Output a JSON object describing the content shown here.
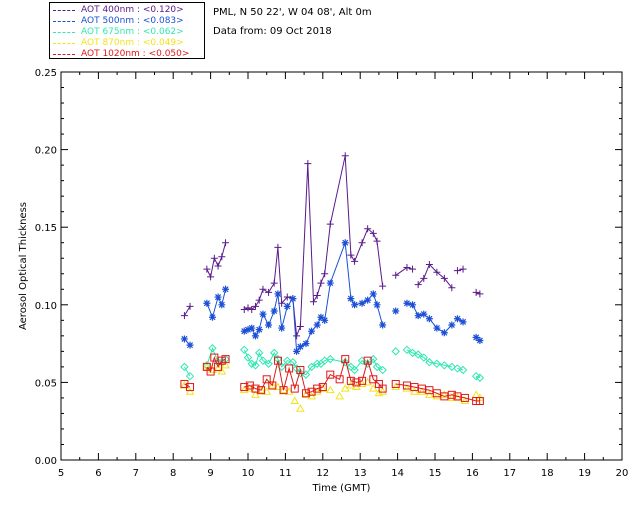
{
  "header": {
    "location": "PML, N 50 22', W 04 08', Alt 0m",
    "date_line": "Data from: 09 Oct 2018"
  },
  "chart_data": {
    "type": "scatter",
    "xlabel": "Time (GMT)",
    "ylabel": "Aerosol Optical Thickness",
    "xlim": [
      5,
      20
    ],
    "ylim": [
      0,
      0.25
    ],
    "xticks": [
      "5",
      "6",
      "7",
      "8",
      "9",
      "10",
      "11",
      "12",
      "13",
      "14",
      "15",
      "16",
      "17",
      "18",
      "19",
      "20"
    ],
    "yticks": [
      "0.00",
      "0.05",
      "0.10",
      "0.15",
      "0.20",
      "0.25"
    ],
    "grid": false,
    "legend_placement": "top-left, outside plot",
    "series": [
      {
        "name": "AOT  400nm : <0.120>",
        "color": "#5a1a8a",
        "marker": "plus",
        "x": [
          8.3,
          8.45,
          8.9,
          9.0,
          9.1,
          9.2,
          9.3,
          9.4,
          9.9,
          10.0,
          10.1,
          10.2,
          10.3,
          10.4,
          10.55,
          10.7,
          10.8,
          10.9,
          11.05,
          11.2,
          11.3,
          11.4,
          11.6,
          11.75,
          11.85,
          11.95,
          12.05,
          12.2,
          12.6,
          12.75,
          12.85,
          13.05,
          13.2,
          13.35,
          13.45,
          13.6,
          13.95,
          14.25,
          14.4,
          14.55,
          14.7,
          14.85,
          15.05,
          15.25,
          15.45,
          15.6,
          15.75,
          16.1,
          16.2
        ],
        "y": [
          0.093,
          0.099,
          0.123,
          0.118,
          0.13,
          0.125,
          0.131,
          0.14,
          0.097,
          0.098,
          0.097,
          0.099,
          0.103,
          0.11,
          0.108,
          0.114,
          0.137,
          0.101,
          0.105,
          0.104,
          0.08,
          0.086,
          0.191,
          0.102,
          0.106,
          0.114,
          0.12,
          0.152,
          0.196,
          0.132,
          0.128,
          0.14,
          0.149,
          0.146,
          0.141,
          0.112,
          0.119,
          0.124,
          0.123,
          0.113,
          0.117,
          0.126,
          0.121,
          0.117,
          0.111,
          0.122,
          0.123,
          0.108,
          0.107
        ],
        "lines": [
          [
            0,
            1
          ],
          [
            2,
            7
          ],
          [
            8,
            35
          ],
          [
            36,
            38
          ],
          [
            39,
            44
          ],
          [
            45,
            46
          ],
          [
            47,
            48
          ]
        ]
      },
      {
        "name": "AOT  500nm : <0.083>",
        "color": "#1a4fd6",
        "marker": "star",
        "x": [
          8.3,
          8.45,
          8.9,
          9.05,
          9.2,
          9.3,
          9.4,
          9.9,
          10.0,
          10.1,
          10.2,
          10.3,
          10.4,
          10.55,
          10.7,
          10.8,
          10.9,
          11.05,
          11.2,
          11.3,
          11.4,
          11.55,
          11.7,
          11.85,
          11.95,
          12.05,
          12.2,
          12.6,
          12.75,
          12.85,
          13.05,
          13.2,
          13.35,
          13.45,
          13.6,
          13.95,
          14.25,
          14.4,
          14.55,
          14.7,
          14.85,
          15.05,
          15.25,
          15.45,
          15.6,
          15.75,
          16.1,
          16.2
        ],
        "y": [
          0.078,
          0.074,
          0.101,
          0.092,
          0.105,
          0.1,
          0.11,
          0.083,
          0.084,
          0.085,
          0.08,
          0.084,
          0.094,
          0.087,
          0.096,
          0.107,
          0.085,
          0.099,
          0.104,
          0.07,
          0.073,
          0.075,
          0.083,
          0.087,
          0.092,
          0.09,
          0.114,
          0.14,
          0.104,
          0.1,
          0.101,
          0.103,
          0.107,
          0.1,
          0.087,
          0.096,
          0.101,
          0.1,
          0.093,
          0.094,
          0.091,
          0.085,
          0.082,
          0.087,
          0.091,
          0.089,
          0.079,
          0.077
        ],
        "lines": [
          [
            0,
            1
          ],
          [
            2,
            6
          ],
          [
            7,
            34
          ],
          [
            36,
            43
          ],
          [
            44,
            45
          ],
          [
            46,
            47
          ]
        ]
      },
      {
        "name": "AOT  675nm : <0.062>",
        "color": "#2ee8b0",
        "marker": "diamond",
        "x": [
          8.3,
          8.45,
          8.9,
          9.05,
          9.2,
          9.3,
          9.4,
          9.9,
          10.0,
          10.1,
          10.2,
          10.3,
          10.4,
          10.55,
          10.7,
          10.8,
          10.9,
          11.05,
          11.2,
          11.3,
          11.4,
          11.55,
          11.7,
          11.85,
          11.95,
          12.05,
          12.2,
          12.6,
          12.75,
          12.85,
          13.05,
          13.2,
          13.35,
          13.45,
          13.6,
          13.95,
          14.25,
          14.4,
          14.55,
          14.7,
          14.85,
          15.05,
          15.25,
          15.45,
          15.6,
          15.75,
          16.1,
          16.2
        ],
        "y": [
          0.06,
          0.054,
          0.061,
          0.072,
          0.063,
          0.063,
          0.065,
          0.071,
          0.066,
          0.062,
          0.061,
          0.069,
          0.064,
          0.062,
          0.069,
          0.065,
          0.06,
          0.064,
          0.063,
          0.059,
          0.056,
          0.055,
          0.06,
          0.062,
          0.062,
          0.064,
          0.065,
          0.063,
          0.06,
          0.058,
          0.064,
          0.062,
          0.065,
          0.06,
          0.058,
          0.07,
          0.071,
          0.069,
          0.068,
          0.066,
          0.063,
          0.062,
          0.061,
          0.06,
          0.059,
          0.058,
          0.054,
          0.053
        ],
        "lines": [
          [
            0,
            1
          ],
          [
            2,
            6
          ],
          [
            7,
            34
          ],
          [
            36,
            43
          ],
          [
            44,
            45
          ],
          [
            46,
            47
          ]
        ]
      },
      {
        "name": "AOT  870nm : <0.049>",
        "color": "#f2e31a",
        "marker": "triangle",
        "x": [
          8.3,
          8.45,
          8.9,
          9.05,
          9.2,
          9.3,
          9.4,
          9.9,
          10.05,
          10.2,
          10.35,
          10.5,
          10.65,
          10.8,
          10.95,
          11.1,
          11.25,
          11.4,
          11.55,
          11.7,
          11.85,
          12.0,
          12.2,
          12.45,
          12.6,
          12.75,
          12.9,
          13.05,
          13.2,
          13.35,
          13.5,
          13.6,
          13.95,
          14.25,
          14.45,
          14.65,
          14.85,
          15.05,
          15.25,
          15.45,
          15.6,
          15.8,
          16.1,
          16.2
        ],
        "y": [
          0.048,
          0.044,
          0.06,
          0.058,
          0.059,
          0.057,
          0.061,
          0.045,
          0.046,
          0.042,
          0.045,
          0.044,
          0.048,
          0.047,
          0.045,
          0.044,
          0.038,
          0.033,
          0.042,
          0.041,
          0.044,
          0.046,
          0.045,
          0.041,
          0.046,
          0.048,
          0.047,
          0.049,
          0.05,
          0.046,
          0.043,
          0.044,
          0.047,
          0.046,
          0.044,
          0.044,
          0.042,
          0.041,
          0.042,
          0.04,
          0.04,
          0.038,
          0.042,
          0.04
        ],
        "lines": []
      },
      {
        "name": "AOT 1020nm : <0.050>",
        "color": "#e01818",
        "marker": "square",
        "x": [
          8.3,
          8.45,
          8.9,
          9.0,
          9.1,
          9.2,
          9.3,
          9.4,
          9.9,
          10.05,
          10.2,
          10.35,
          10.5,
          10.65,
          10.8,
          10.95,
          11.1,
          11.25,
          11.4,
          11.55,
          11.7,
          11.85,
          12.0,
          12.2,
          12.45,
          12.6,
          12.75,
          12.9,
          13.05,
          13.2,
          13.35,
          13.5,
          13.6,
          13.95,
          14.25,
          14.45,
          14.65,
          14.85,
          15.05,
          15.25,
          15.45,
          15.6,
          15.8,
          16.1,
          16.2
        ],
        "y": [
          0.049,
          0.047,
          0.06,
          0.057,
          0.066,
          0.06,
          0.064,
          0.065,
          0.047,
          0.048,
          0.046,
          0.045,
          0.052,
          0.048,
          0.064,
          0.045,
          0.059,
          0.046,
          0.058,
          0.043,
          0.044,
          0.046,
          0.047,
          0.055,
          0.052,
          0.065,
          0.051,
          0.05,
          0.051,
          0.064,
          0.052,
          0.049,
          0.046,
          0.049,
          0.048,
          0.047,
          0.046,
          0.045,
          0.043,
          0.041,
          0.042,
          0.041,
          0.04,
          0.038,
          0.038
        ],
        "lines": [
          [
            0,
            1
          ],
          [
            2,
            7
          ],
          [
            8,
            32
          ],
          [
            33,
            44
          ]
        ]
      }
    ]
  }
}
